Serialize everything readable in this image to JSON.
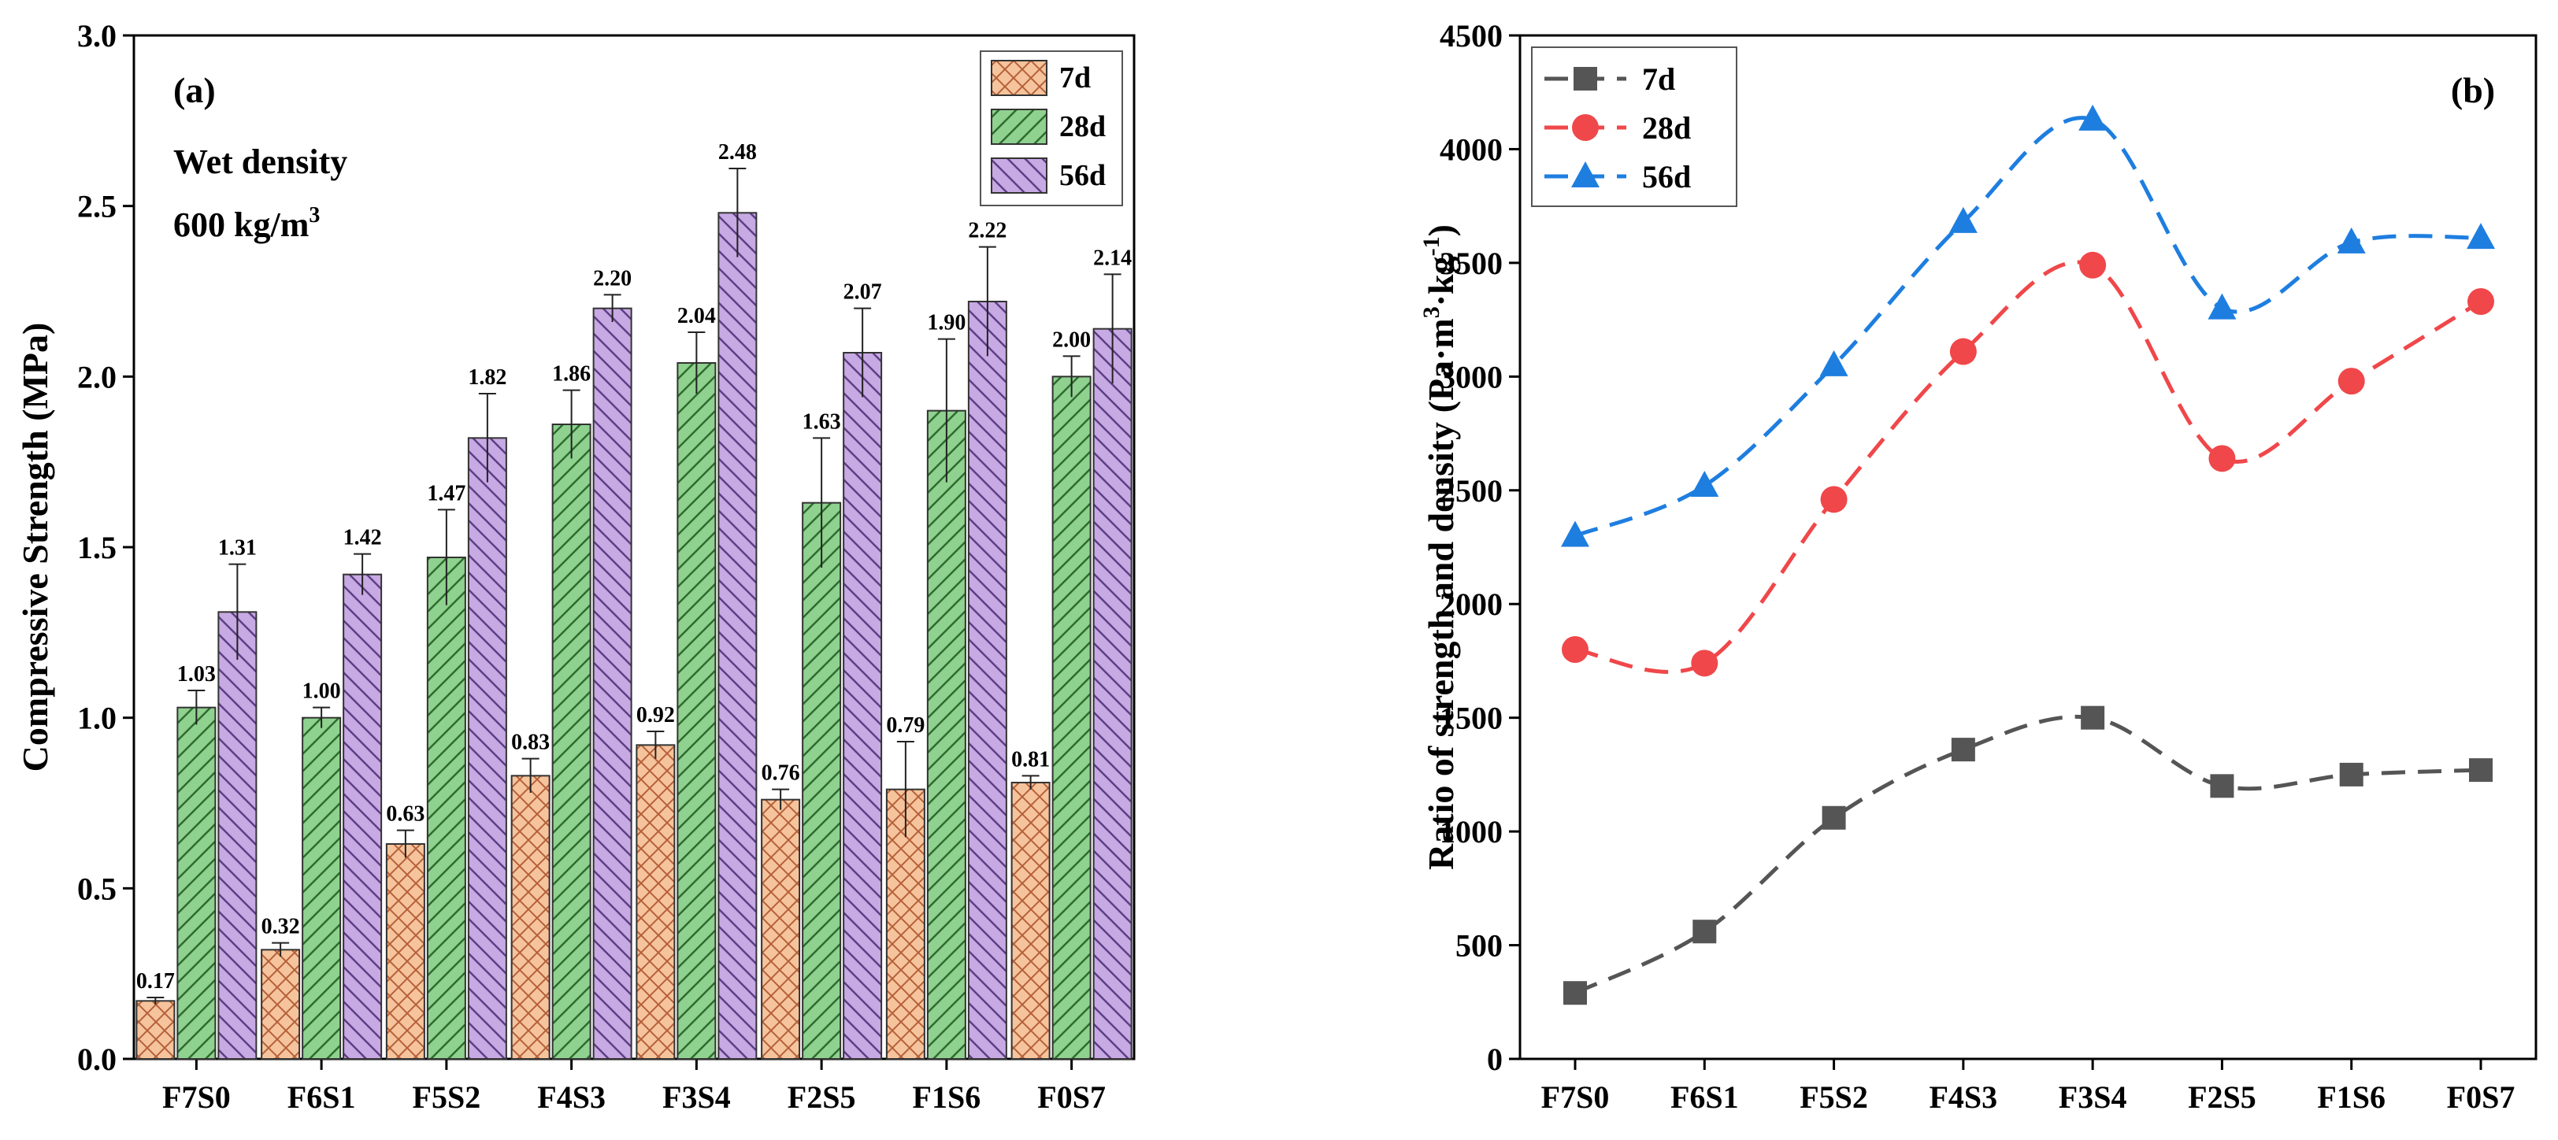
{
  "chart_data": [
    {
      "type": "bar",
      "panel_label": "(a)",
      "annotation_lines": [
        "Wet density",
        "600 kg/m"
      ],
      "annotation_superscript": "3",
      "ylabel": "Compressive Strength (MPa)",
      "xlabel": "",
      "ylim": [
        0,
        3.0
      ],
      "yticks": [
        "0.0",
        "0.5",
        "1.0",
        "1.5",
        "2.0",
        "2.5",
        "3.0"
      ],
      "categories": [
        "F7S0",
        "F6S1",
        "F5S2",
        "F4S3",
        "F3S4",
        "F2S5",
        "F1S6",
        "F0S7"
      ],
      "legend_position": "top-right",
      "series": [
        {
          "name": "7d",
          "color": "#f6c49c",
          "hatch": "crosshatch",
          "values": [
            0.17,
            0.32,
            0.63,
            0.83,
            0.92,
            0.76,
            0.79,
            0.81
          ],
          "labels": [
            "0.17",
            "0.32",
            "0.63",
            "0.83",
            "0.92",
            "0.76",
            "0.79",
            "0.81"
          ],
          "errors": [
            0.01,
            0.02,
            0.04,
            0.05,
            0.04,
            0.03,
            0.14,
            0.02
          ]
        },
        {
          "name": "28d",
          "color": "#8fd18f",
          "hatch": "diagonal",
          "values": [
            1.03,
            1.0,
            1.47,
            1.86,
            2.04,
            1.63,
            1.9,
            2.0
          ],
          "labels": [
            "1.03",
            "1.00",
            "1.47",
            "1.86",
            "2.04",
            "1.63",
            "1.90",
            "2.00"
          ],
          "errors": [
            0.05,
            0.03,
            0.14,
            0.1,
            0.09,
            0.19,
            0.21,
            0.06
          ]
        },
        {
          "name": "56d",
          "color": "#c7a9e3",
          "hatch": "diagonal-reverse",
          "values": [
            1.31,
            1.42,
            1.82,
            2.2,
            2.48,
            2.07,
            2.22,
            2.14
          ],
          "labels": [
            "1.31",
            "1.42",
            "1.82",
            "2.20",
            "2.48",
            "2.07",
            "2.22",
            "2.14"
          ],
          "errors": [
            0.14,
            0.06,
            0.13,
            0.04,
            0.13,
            0.13,
            0.16,
            0.16
          ]
        }
      ]
    },
    {
      "type": "line",
      "panel_label": "(b)",
      "ylabel": "Ratio of strength and density (Pa·m",
      "ylabel_parts": [
        "Ratio of strength and density (Pa·m",
        "3",
        "·kg",
        "-1",
        ")"
      ],
      "xlabel": "",
      "ylim": [
        0,
        4500
      ],
      "yticks": [
        "0",
        "500",
        "1000",
        "1500",
        "2000",
        "2500",
        "3000",
        "3500",
        "4000",
        "4500"
      ],
      "categories": [
        "F7S0",
        "F6S1",
        "F5S2",
        "F4S3",
        "F3S4",
        "F2S5",
        "F1S6",
        "F0S7"
      ],
      "legend_position": "top-left",
      "series": [
        {
          "name": "7d",
          "color": "#555555",
          "marker": "square",
          "values": [
            290,
            560,
            1060,
            1360,
            1500,
            1200,
            1250,
            1270
          ]
        },
        {
          "name": "28d",
          "color": "#f0474a",
          "marker": "circle",
          "values": [
            1800,
            1740,
            2460,
            3110,
            3490,
            2640,
            2980,
            3330
          ]
        },
        {
          "name": "56d",
          "color": "#1e7ee0",
          "marker": "triangle",
          "values": [
            2300,
            2520,
            3050,
            3680,
            4130,
            3300,
            3590,
            3610
          ]
        }
      ]
    }
  ]
}
